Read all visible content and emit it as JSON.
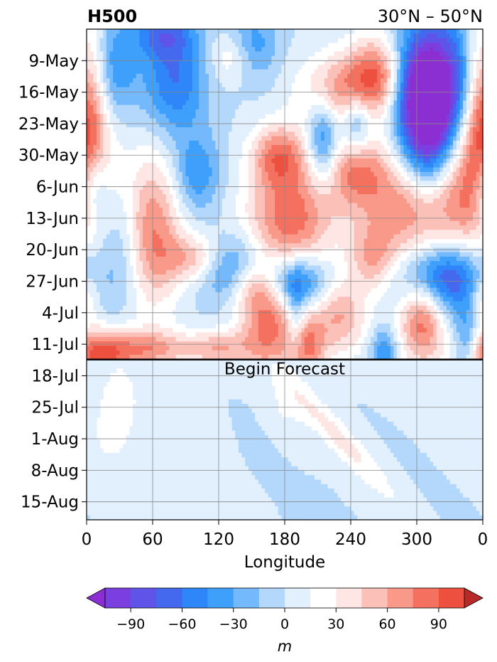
{
  "chart_data": {
    "type": "heatmap",
    "title_left": "H500",
    "title_right": "30°N – 50°N",
    "xlabel": "Longitude",
    "ylabel": "",
    "x_ticks": [
      "0",
      "60",
      "120",
      "180",
      "240",
      "300",
      "0"
    ],
    "x_tick_values": [
      0,
      60,
      120,
      180,
      240,
      300,
      360
    ],
    "y_ticks": [
      "9-May",
      "16-May",
      "23-May",
      "30-May",
      "6-Jun",
      "13-Jun",
      "20-Jun",
      "27-Jun",
      "4-Jul",
      "11-Jul",
      "18-Jul",
      "25-Jul",
      "1-Aug",
      "8-Aug",
      "15-Aug"
    ],
    "time_range": [
      "2-May",
      "19-Aug"
    ],
    "y_inverted": true,
    "grid": true,
    "forecast_start": "14-Jul",
    "forecast_label": "Begin Forecast",
    "colorbar": {
      "levels": [
        -105,
        -90,
        -75,
        -60,
        -45,
        -30,
        -15,
        0,
        15,
        30,
        45,
        60,
        75,
        90,
        105
      ],
      "colors": [
        "#8b2fd3",
        "#7a3fde",
        "#5f53e8",
        "#4468ee",
        "#2f86f8",
        "#3fa0fb",
        "#74b9fb",
        "#b4d8fb",
        "#e2f0fd",
        "#ffffff",
        "#fde6e3",
        "#fbc1b8",
        "#f8998a",
        "#f4705f",
        "#ee5040",
        "#df4037",
        "#cc3530",
        "#b82a2a"
      ],
      "tick_values": [
        -90,
        -60,
        -30,
        0,
        30,
        60,
        90
      ],
      "tick_labels": [
        "−90",
        "−60",
        "−30",
        "0",
        "30",
        "60",
        "90"
      ],
      "label": "m",
      "extend": "both"
    },
    "features": [
      {
        "lon": 330,
        "date": "17-May",
        "value": -110,
        "dlon": 22,
        "ddays": 12
      },
      {
        "lon": 300,
        "date": "14-May",
        "value": -80,
        "dlon": 18,
        "ddays": 9
      },
      {
        "lon": 310,
        "date": "25-May",
        "value": -90,
        "dlon": 16,
        "ddays": 10
      },
      {
        "lon": 345,
        "date": "1-Jun",
        "value": 95,
        "dlon": 25,
        "ddays": 14
      },
      {
        "lon": 290,
        "date": "11-Jun",
        "value": 70,
        "dlon": 30,
        "ddays": 8
      },
      {
        "lon": 265,
        "date": "12-May",
        "value": 80,
        "dlon": 18,
        "ddays": 6
      },
      {
        "lon": 230,
        "date": "16-May",
        "value": 70,
        "dlon": 25,
        "ddays": 6
      },
      {
        "lon": 185,
        "date": "13-Jun",
        "value": 85,
        "dlon": 28,
        "ddays": 8
      },
      {
        "lon": 175,
        "date": "30-May",
        "value": 75,
        "dlon": 18,
        "ddays": 5
      },
      {
        "lon": 245,
        "date": "2-Jun",
        "value": 70,
        "dlon": 20,
        "ddays": 6
      },
      {
        "lon": 215,
        "date": "26-May",
        "value": -65,
        "dlon": 10,
        "ddays": 7
      },
      {
        "lon": 245,
        "date": "23-May",
        "value": -60,
        "dlon": 10,
        "ddays": 5
      },
      {
        "lon": 130,
        "date": "24-Jun",
        "value": -60,
        "dlon": 22,
        "ddays": 5
      },
      {
        "lon": 190,
        "date": "27-Jun",
        "value": -70,
        "dlon": 20,
        "ddays": 4
      },
      {
        "lon": 320,
        "date": "26-Jun",
        "value": -75,
        "dlon": 25,
        "ddays": 5
      },
      {
        "lon": 80,
        "date": "14-May",
        "value": -60,
        "dlon": 20,
        "ddays": 8
      },
      {
        "lon": 25,
        "date": "11-May",
        "value": -45,
        "dlon": 15,
        "ddays": 8
      },
      {
        "lon": 70,
        "date": "3-May",
        "value": -55,
        "dlon": 20,
        "ddays": 4
      },
      {
        "lon": 150,
        "date": "6-May",
        "value": -50,
        "dlon": 15,
        "ddays": 5
      },
      {
        "lon": 0,
        "date": "18-May",
        "value": 80,
        "dlon": 12,
        "ddays": 14
      },
      {
        "lon": 5,
        "date": "6-Jun",
        "value": -60,
        "dlon": 10,
        "ddays": 6
      },
      {
        "lon": 60,
        "date": "16-Jun",
        "value": 75,
        "dlon": 18,
        "ddays": 12
      },
      {
        "lon": 100,
        "date": "22-Jun",
        "value": 60,
        "dlon": 20,
        "ddays": 4
      },
      {
        "lon": 100,
        "date": "3-Jun",
        "value": -45,
        "dlon": 15,
        "ddays": 6
      },
      {
        "lon": 165,
        "date": "7-Jul",
        "value": 80,
        "dlon": 18,
        "ddays": 8
      },
      {
        "lon": 200,
        "date": "12-Jul",
        "value": 70,
        "dlon": 12,
        "ddays": 5
      },
      {
        "lon": 230,
        "date": "5-Jul",
        "value": 60,
        "dlon": 18,
        "ddays": 6
      },
      {
        "lon": 305,
        "date": "6-Jul",
        "value": 85,
        "dlon": 15,
        "ddays": 7
      },
      {
        "lon": 10,
        "date": "13-Jul",
        "value": 95,
        "dlon": 22,
        "ddays": 4
      },
      {
        "lon": 60,
        "date": "12-Jul",
        "value": 60,
        "dlon": 25,
        "ddays": 3
      },
      {
        "lon": 120,
        "date": "12-Jul",
        "value": 55,
        "dlon": 20,
        "ddays": 3
      },
      {
        "lon": 345,
        "date": "12-Jul",
        "value": -55,
        "dlon": 8,
        "ddays": 5
      },
      {
        "lon": 270,
        "date": "13-Jul",
        "value": -50,
        "dlon": 8,
        "ddays": 4
      },
      {
        "lon": 190,
        "date": "6-Jul",
        "value": -40,
        "dlon": 6,
        "ddays": 6
      },
      {
        "lon": 0,
        "date": "1-Jul",
        "value": 40,
        "dlon": 8,
        "ddays": 4
      },
      {
        "lon": 30,
        "date": "20-Jun",
        "value": -30,
        "dlon": 15,
        "ddays": 10
      },
      {
        "lon": 340,
        "date": "28-Jun",
        "value": -30,
        "dlon": 20,
        "ddays": 8
      },
      {
        "lon": 135,
        "date": "8-May",
        "value": 40,
        "dlon": 15,
        "ddays": 4
      },
      {
        "lon": 260,
        "date": "22-Jun",
        "value": 50,
        "dlon": 15,
        "ddays": 5
      },
      {
        "lon": 150,
        "date": "28-Jun",
        "value": 45,
        "dlon": 15,
        "ddays": 4
      }
    ],
    "forecast_features": [
      {
        "lon": 30,
        "date": "23-Jul",
        "value": 25,
        "dlon": 12,
        "ddays": 6
      },
      {
        "lon": 20,
        "date": "1-Aug",
        "value": 15,
        "dlon": 15,
        "ddays": 6
      },
      {
        "lon": 230,
        "date": "1-Aug",
        "value": 35,
        "dlon": 12,
        "ddays": 10,
        "slope": 3.5
      },
      {
        "lon": 295,
        "date": "30-Jul",
        "value": 20,
        "dlon": 10,
        "ddays": 10,
        "slope": 3.5
      },
      {
        "lon": 175,
        "date": "8-Aug",
        "value": -15,
        "dlon": 10,
        "ddays": 12,
        "slope": 3
      },
      {
        "lon": 310,
        "date": "6-Aug",
        "value": -15,
        "dlon": 10,
        "ddays": 12,
        "slope": 3
      },
      {
        "lon": 180,
        "date": "25-Jul",
        "value": 15,
        "dlon": 15,
        "ddays": 8
      },
      {
        "lon": 105,
        "date": "25-Jul",
        "value": 15,
        "dlon": 20,
        "ddays": 6
      },
      {
        "lon": 335,
        "date": "25-Jul",
        "value": 12,
        "dlon": 15,
        "ddays": 8
      }
    ]
  }
}
